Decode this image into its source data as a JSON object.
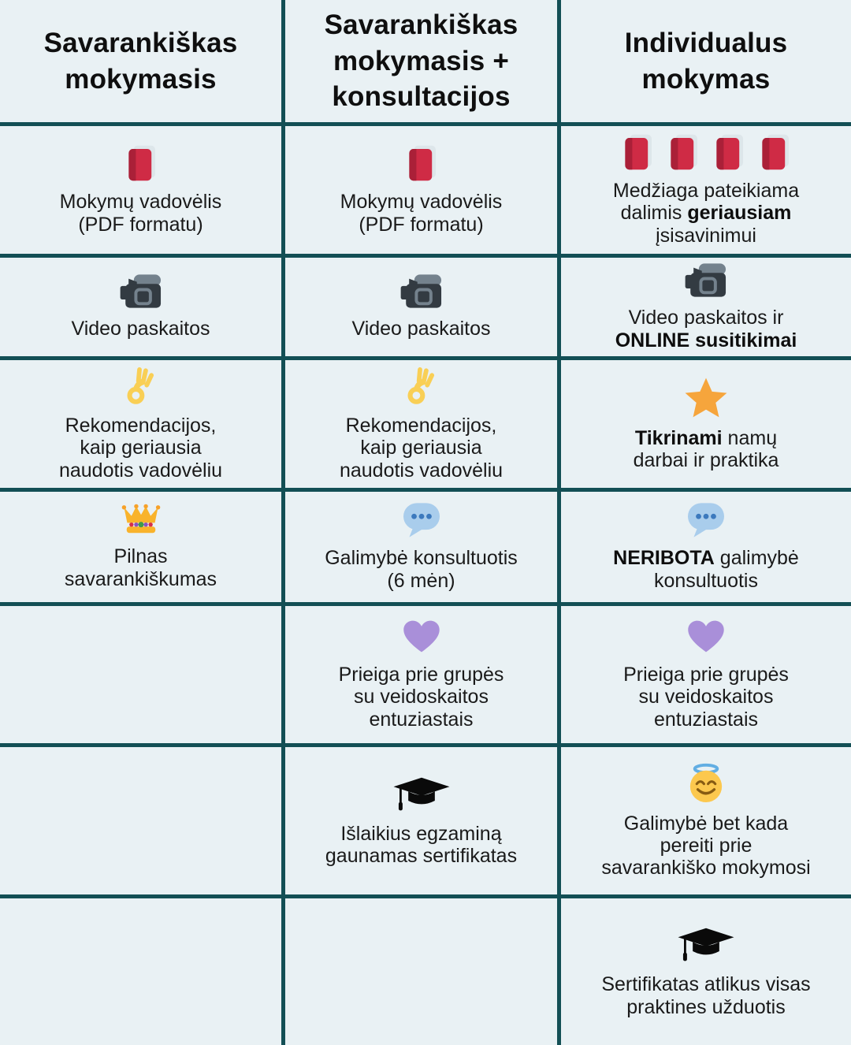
{
  "page": {
    "background_color": "#e9f1f4",
    "grid_line_color": "#134f55",
    "text_color": "#1a1a1a"
  },
  "icon_glyphs": {
    "closed-book": "📕",
    "video-camera": "📹",
    "ok-hand": "👌",
    "star": "⭐",
    "crown": "👑",
    "speech-balloon": "💬",
    "purple-heart": "💜",
    "graduation-cap": "🎓",
    "halo-face": "😇"
  },
  "table": {
    "headers": [
      {
        "id": "self-study",
        "label": "Savarankiškas\nmokymasis"
      },
      {
        "id": "self-study-consultations",
        "label": "Savarankiškas\nmokymasis +\nkonsultacijos"
      },
      {
        "id": "individual",
        "label": "Individualus\nmokymas"
      }
    ],
    "rows": [
      {
        "id": "textbook",
        "cells": [
          {
            "icons": [
              "closed-book"
            ],
            "segments": [
              {
                "text": "Mokymų vadovėlis\n(PDF formatu)"
              }
            ]
          },
          {
            "icons": [
              "closed-book"
            ],
            "segments": [
              {
                "text": "Mokymų vadovėlis\n(PDF formatu)"
              }
            ]
          },
          {
            "icons": [
              "closed-book",
              "closed-book",
              "closed-book",
              "closed-book"
            ],
            "segments": [
              {
                "text": "Medžiaga pateikiama\ndalimis "
              },
              {
                "text": "geriausiam",
                "bold": true
              },
              {
                "text": "\nįsisavinimui"
              }
            ]
          }
        ]
      },
      {
        "id": "video",
        "cells": [
          {
            "icons": [
              "video-camera"
            ],
            "segments": [
              {
                "text": "Video paskaitos"
              }
            ]
          },
          {
            "icons": [
              "video-camera"
            ],
            "segments": [
              {
                "text": "Video paskaitos"
              }
            ]
          },
          {
            "icons": [
              "video-camera"
            ],
            "segments": [
              {
                "text": "Video paskaitos ir\n"
              },
              {
                "text": "ONLINE susitikimai",
                "bold": true
              }
            ]
          }
        ]
      },
      {
        "id": "recommendations",
        "cells": [
          {
            "icons": [
              "ok-hand"
            ],
            "segments": [
              {
                "text": "Rekomendacijos,\nkaip geriausia\nnaudotis vadovėliu"
              }
            ]
          },
          {
            "icons": [
              "ok-hand"
            ],
            "segments": [
              {
                "text": "Rekomendacijos,\nkaip geriausia\nnaudotis vadovėliu"
              }
            ]
          },
          {
            "icons": [
              "star"
            ],
            "segments": [
              {
                "text": "Tikrinami",
                "bold": true
              },
              {
                "text": " namų\ndarbai ir praktika"
              }
            ]
          }
        ]
      },
      {
        "id": "consultations",
        "cells": [
          {
            "icons": [
              "crown"
            ],
            "segments": [
              {
                "text": "Pilnas\nsavarankiškumas"
              }
            ]
          },
          {
            "icons": [
              "speech-balloon"
            ],
            "segments": [
              {
                "text": "Galimybė konsultuotis\n(6 mėn)"
              }
            ]
          },
          {
            "icons": [
              "speech-balloon"
            ],
            "segments": [
              {
                "text": "NERIBOTA",
                "bold": true
              },
              {
                "text": " galimybė\nkonsultuotis"
              }
            ]
          }
        ]
      },
      {
        "id": "community",
        "cells": [
          {
            "icons": [],
            "segments": []
          },
          {
            "icons": [
              "purple-heart"
            ],
            "segments": [
              {
                "text": "Prieiga prie grupės\nsu veidoskaitos\nentuziastais"
              }
            ]
          },
          {
            "icons": [
              "purple-heart"
            ],
            "segments": [
              {
                "text": "Prieiga prie grupės\nsu veidoskaitos\nentuziastais"
              }
            ]
          }
        ]
      },
      {
        "id": "exam-certificate",
        "cells": [
          {
            "icons": [],
            "segments": []
          },
          {
            "icons": [
              "graduation-cap"
            ],
            "segments": [
              {
                "text": "Išlaikius egzaminą\ngaunamas sertifikatas"
              }
            ]
          },
          {
            "icons": [
              "halo-face"
            ],
            "segments": [
              {
                "text": "Galimybė bet kada\npereiti prie\nsavarankiško mokymosi"
              }
            ]
          }
        ]
      },
      {
        "id": "practice-certificate",
        "cells": [
          {
            "icons": [],
            "segments": []
          },
          {
            "icons": [],
            "segments": []
          },
          {
            "icons": [
              "graduation-cap"
            ],
            "segments": [
              {
                "text": "Sertifikatas atlikus visas\npraktines užduotis"
              }
            ]
          }
        ]
      }
    ]
  }
}
